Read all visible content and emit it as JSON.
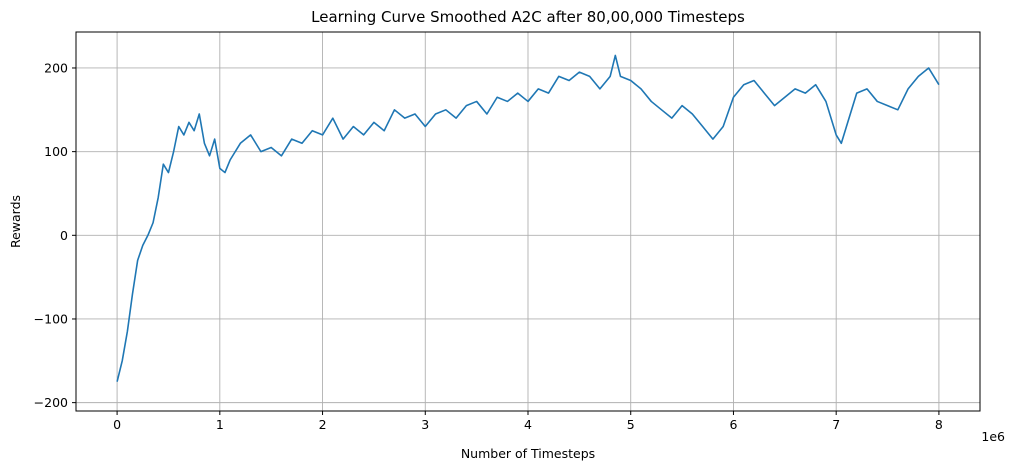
{
  "chart_data": {
    "type": "line",
    "title": "Learning Curve Smoothed A2C after 80,00,000 Timesteps",
    "xlabel": "Number of Timesteps",
    "ylabel": "Rewards",
    "x_offset_label": "1e6",
    "xlim": [
      -400000,
      8400000
    ],
    "ylim": [
      -210,
      243
    ],
    "x_ticks": [
      0,
      1000000,
      2000000,
      3000000,
      4000000,
      5000000,
      6000000,
      7000000,
      8000000
    ],
    "x_tick_labels": [
      "0",
      "1",
      "2",
      "3",
      "4",
      "5",
      "6",
      "7",
      "8"
    ],
    "y_ticks": [
      -200,
      -100,
      0,
      100,
      200
    ],
    "y_tick_labels": [
      "−200",
      "−100",
      "0",
      "100",
      "200"
    ],
    "grid": true,
    "line_color": "#1f77b4",
    "grid_color": "#b0b0b0",
    "series": [
      {
        "x": [
          0,
          50000,
          100000,
          150000,
          200000,
          250000,
          300000,
          350000,
          400000,
          450000,
          500000,
          550000,
          600000,
          650000,
          700000,
          750000,
          800000,
          850000,
          900000,
          950000,
          1000000,
          1050000,
          1100000,
          1200000,
          1300000,
          1400000,
          1500000,
          1600000,
          1700000,
          1800000,
          1900000,
          2000000,
          2100000,
          2200000,
          2300000,
          2400000,
          2500000,
          2600000,
          2700000,
          2800000,
          2900000,
          3000000,
          3100000,
          3200000,
          3300000,
          3400000,
          3500000,
          3600000,
          3700000,
          3800000,
          3900000,
          4000000,
          4100000,
          4200000,
          4300000,
          4400000,
          4500000,
          4600000,
          4700000,
          4800000,
          4850000,
          4900000,
          5000000,
          5100000,
          5200000,
          5300000,
          5400000,
          5500000,
          5600000,
          5700000,
          5800000,
          5900000,
          6000000,
          6100000,
          6200000,
          6300000,
          6400000,
          6500000,
          6600000,
          6700000,
          6800000,
          6900000,
          7000000,
          7050000,
          7100000,
          7200000,
          7300000,
          7400000,
          7500000,
          7600000,
          7700000,
          7800000,
          7900000,
          8000000
        ],
        "values": [
          -175,
          -150,
          -115,
          -70,
          -30,
          -12,
          0,
          15,
          45,
          85,
          75,
          100,
          130,
          120,
          135,
          125,
          145,
          110,
          95,
          115,
          80,
          75,
          90,
          110,
          120,
          100,
          105,
          95,
          115,
          110,
          125,
          120,
          140,
          115,
          130,
          120,
          135,
          125,
          150,
          140,
          145,
          130,
          145,
          150,
          140,
          155,
          160,
          145,
          165,
          160,
          170,
          160,
          175,
          170,
          190,
          185,
          195,
          190,
          175,
          190,
          215,
          190,
          185,
          175,
          160,
          150,
          140,
          155,
          145,
          130,
          115,
          130,
          165,
          180,
          185,
          170,
          155,
          165,
          175,
          170,
          180,
          160,
          120,
          110,
          130,
          170,
          175,
          160,
          155,
          150,
          175,
          190,
          200,
          180
        ]
      }
    ]
  }
}
